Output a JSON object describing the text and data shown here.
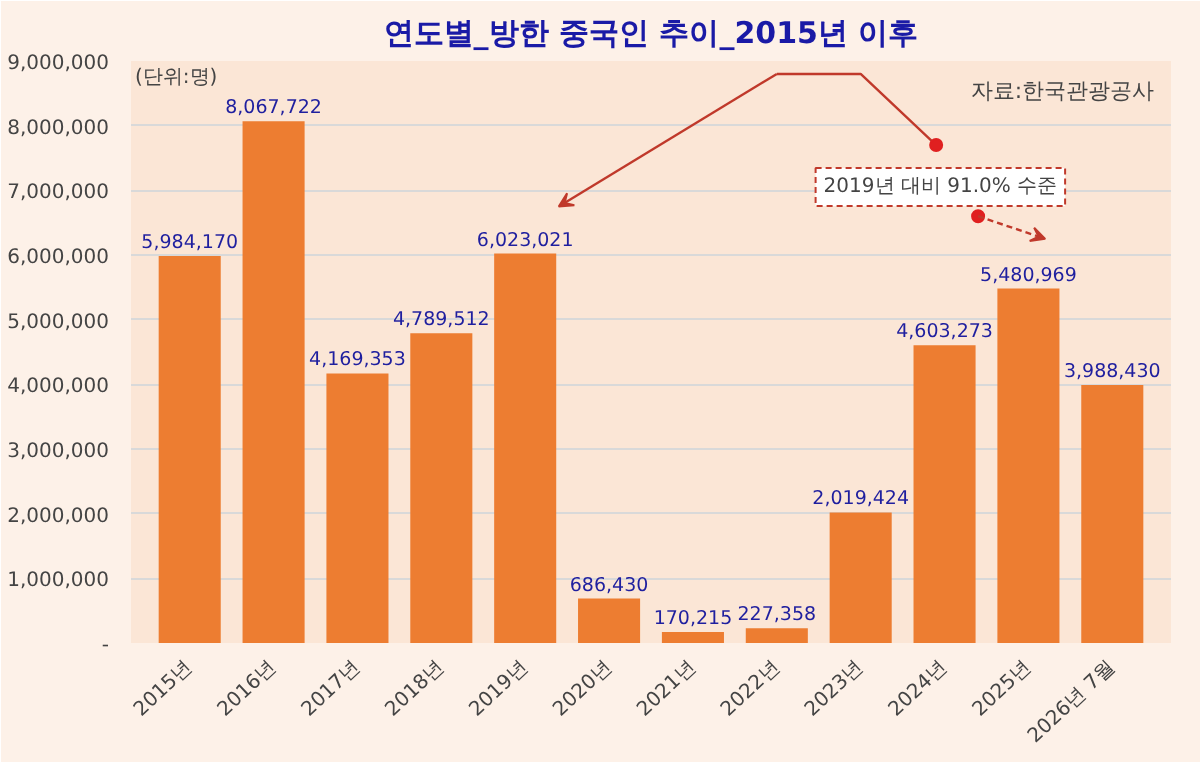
{
  "chart_data": {
    "type": "bar",
    "title": "연도별_방한 중국인 추이_2015년 이후",
    "categories": [
      "2015년",
      "2016년",
      "2017년",
      "2018년",
      "2019년",
      "2020년",
      "2021년",
      "2022년",
      "2023년",
      "2024년",
      "2025년",
      "2026년 7월"
    ],
    "values": [
      5984170,
      8067722,
      4169353,
      4789512,
      6023021,
      686430,
      170215,
      227358,
      2019424,
      4603273,
      5480969,
      3988430
    ],
    "color": "#ed7d31",
    "value_labels": [
      "5,984,170",
      "8,067,722",
      "4,169,353",
      "4,789,512",
      "6,023,021",
      "686,430",
      "170,215",
      "227,358",
      "2,019,424",
      "4,603,273",
      "5,480,969",
      "3,988,430"
    ],
    "ylim": [
      0,
      9000000
    ],
    "yticks": [
      {
        "value": 0,
        "label": "-"
      },
      {
        "value": 1000000,
        "label": "1,000,000"
      },
      {
        "value": 2000000,
        "label": "2,000,000"
      },
      {
        "value": 3000000,
        "label": "3,000,000"
      },
      {
        "value": 4000000,
        "label": "4,000,000"
      },
      {
        "value": 5000000,
        "label": "5,000,000"
      },
      {
        "value": 6000000,
        "label": "6,000,000"
      },
      {
        "value": 7000000,
        "label": "7,000,000"
      },
      {
        "value": 8000000,
        "label": "8,000,000"
      },
      {
        "value": 9000000,
        "label": "9,000,000"
      }
    ],
    "grid": "y",
    "annotations": [
      "(단위:명)",
      "자료:한국관광공사",
      "2019년 대비 91.0% 수준"
    ]
  }
}
